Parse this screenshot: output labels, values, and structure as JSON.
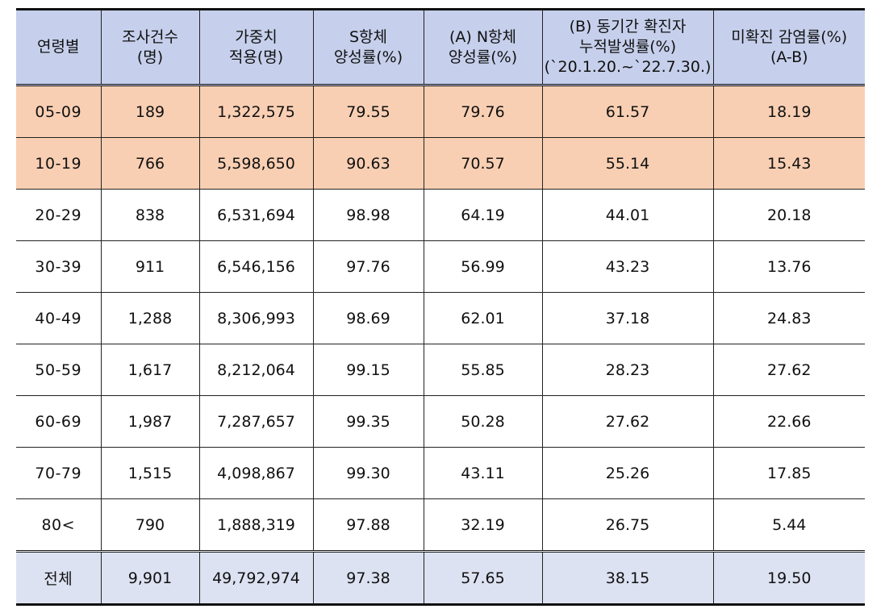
{
  "header": {
    "col1": [
      "연령별"
    ],
    "col2": [
      "조사건수",
      "(명)"
    ],
    "col3": [
      "가중치",
      "적용(명)"
    ],
    "col4": [
      "S항체",
      "양성률(%)"
    ],
    "col5": [
      "(A)  N항체",
      "양성률(%)"
    ],
    "col6": [
      "(B)  동기간  확진자",
      "누적발생률(%)",
      "(`20.1.20.~`22.7.30.)"
    ],
    "col7": [
      "미확진  감염률(%)",
      "(A-B)"
    ]
  },
  "rows": [
    {
      "age": "05-09",
      "count": "189",
      "weighted": "1,322,575",
      "s": "79.55",
      "n": "79.76",
      "b": "61.57",
      "diff": "18.19"
    },
    {
      "age": "10-19",
      "count": "766",
      "weighted": "5,598,650",
      "s": "90.63",
      "n": "70.57",
      "b": "55.14",
      "diff": "15.43"
    },
    {
      "age": "20-29",
      "count": "838",
      "weighted": "6,531,694",
      "s": "98.98",
      "n": "64.19",
      "b": "44.01",
      "diff": "20.18"
    },
    {
      "age": "30-39",
      "count": "911",
      "weighted": "6,546,156",
      "s": "97.76",
      "n": "56.99",
      "b": "43.23",
      "diff": "13.76"
    },
    {
      "age": "40-49",
      "count": "1,288",
      "weighted": "8,306,993",
      "s": "98.69",
      "n": "62.01",
      "b": "37.18",
      "diff": "24.83"
    },
    {
      "age": "50-59",
      "count": "1,617",
      "weighted": "8,212,064",
      "s": "99.15",
      "n": "55.85",
      "b": "28.23",
      "diff": "27.62"
    },
    {
      "age": "60-69",
      "count": "1,987",
      "weighted": "7,287,657",
      "s": "99.35",
      "n": "50.28",
      "b": "27.62",
      "diff": "22.66"
    },
    {
      "age": "70-79",
      "count": "1,515",
      "weighted": "4,098,867",
      "s": "99.30",
      "n": "43.11",
      "b": "25.26",
      "diff": "17.85"
    },
    {
      "age": "80<",
      "count": "790",
      "weighted": "1,888,319",
      "s": "97.88",
      "n": "32.19",
      "b": "26.75",
      "diff": "5.44"
    }
  ],
  "total": {
    "age": "전체",
    "count": "9,901",
    "weighted": "49,792,974",
    "s": "97.38",
    "n": "57.65",
    "b": "38.15",
    "diff": "19.50"
  },
  "colors": {
    "header_bg": "#c6d0ec",
    "highlight_bg": "#f9cfb3",
    "total_bg": "#dde2f2"
  }
}
